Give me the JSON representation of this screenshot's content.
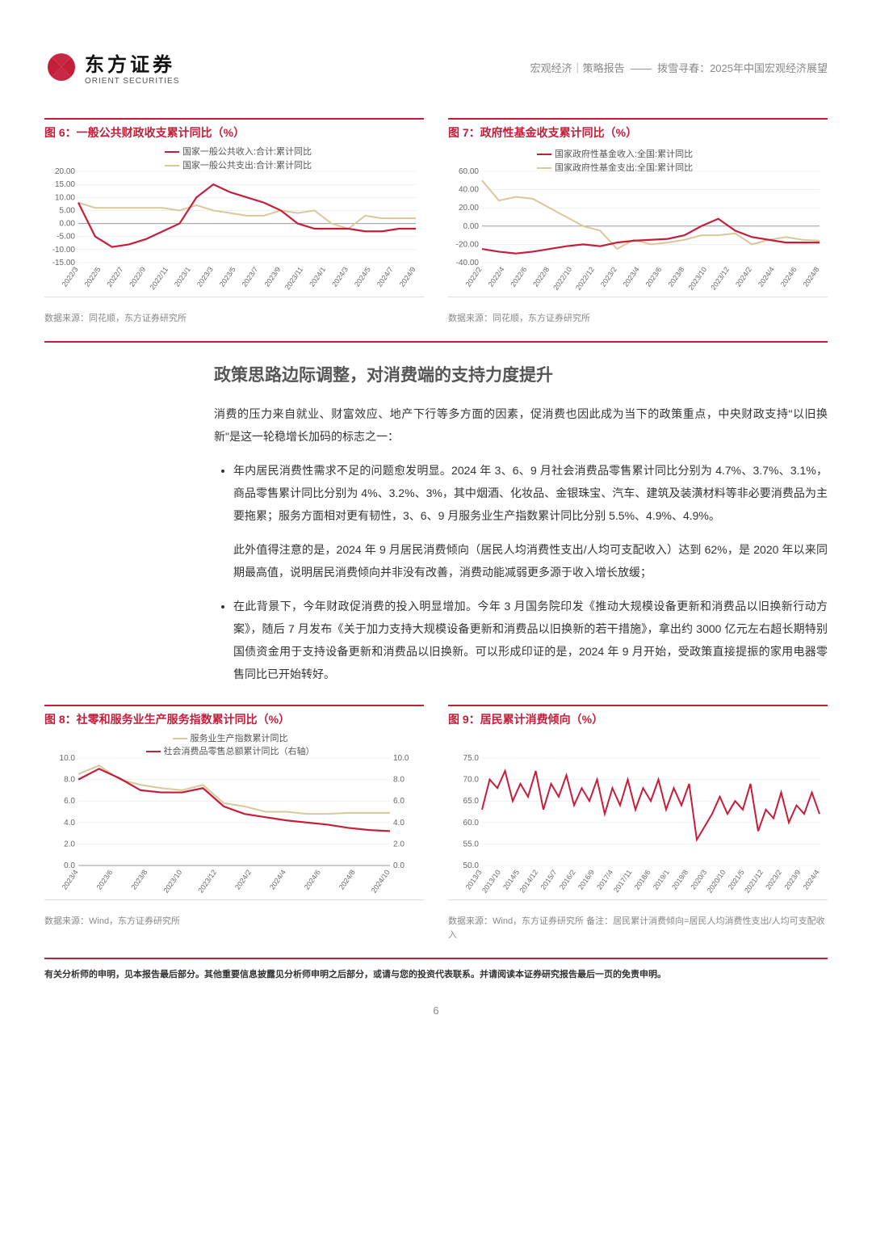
{
  "header": {
    "logo_cn": "东方证券",
    "logo_en": "ORIENT SECURITIES",
    "meta_left": "宏观经济｜策略报告",
    "meta_right": "拨雪寻春：2025年中国宏观经济展望"
  },
  "colors": {
    "brand_red": "#c41e3a",
    "series_red": "#c41e3a",
    "series_beige": "#d9c89a",
    "axis": "#666666",
    "grid": "#e5e5e5",
    "text_gray": "#888888"
  },
  "chart6": {
    "title": "图 6：一般公共财政收支累计同比（%）",
    "source": "数据来源：同花顺，东方证券研究所",
    "legend": [
      "国家一般公共收入:合计:累计同比",
      "国家一般公共支出:合计:累计同比"
    ],
    "ylim": [
      -15,
      20
    ],
    "ytick_step": 5,
    "xlabels": [
      "2022/3",
      "2022/5",
      "2022/7",
      "2022/9",
      "2022/11",
      "2023/1",
      "2023/3",
      "2023/5",
      "2023/7",
      "2023/9",
      "2023/11",
      "2024/1",
      "2024/3",
      "2024/5",
      "2024/7",
      "2024/9"
    ],
    "series_red": [
      8,
      -5,
      -9,
      -8,
      -6,
      -3,
      0,
      10,
      15,
      12,
      10,
      8,
      5,
      0,
      -2,
      -2,
      -2,
      -3,
      -3,
      -2,
      -2
    ],
    "series_beige": [
      8,
      6,
      6,
      6,
      6,
      6,
      5,
      7,
      5,
      4,
      3,
      3,
      5,
      4,
      5,
      0,
      -2,
      3,
      2,
      2,
      2
    ]
  },
  "chart7": {
    "title": "图 7：政府性基金收支累计同比（%）",
    "source": "数据来源：同花顺，东方证券研究所",
    "legend": [
      "国家政府性基金收入:全国:累计同比",
      "国家政府性基金支出:全国:累计同比"
    ],
    "ylim": [
      -40,
      60
    ],
    "ytick_step": 20,
    "xlabels": [
      "2022/2",
      "2022/4",
      "2022/6",
      "2022/8",
      "2022/10",
      "2022/12",
      "2023/2",
      "2023/4",
      "2023/6",
      "2023/8",
      "2023/10",
      "2023/12",
      "2024/2",
      "2024/4",
      "2024/6",
      "2024/8"
    ],
    "series_red": [
      -25,
      -28,
      -30,
      -28,
      -25,
      -22,
      -20,
      -22,
      -18,
      -16,
      -15,
      -14,
      -10,
      0,
      8,
      -5,
      -12,
      -15,
      -18,
      -18,
      -18
    ],
    "series_beige": [
      50,
      28,
      32,
      30,
      20,
      10,
      0,
      -5,
      -25,
      -15,
      -20,
      -18,
      -15,
      -10,
      -10,
      -8,
      -20,
      -15,
      -12,
      -15,
      -16
    ]
  },
  "chart8": {
    "title": "图 8：社零和服务业生产服务指数累计同比（%）",
    "source": "数据来源：Wind，东方证券研究所",
    "legend": [
      "服务业生产指数累计同比",
      "社会消费品零售总额累计同比（右轴）"
    ],
    "ylim_left": [
      0,
      10
    ],
    "ytick_step_left": 2,
    "ylim_right": [
      0,
      10
    ],
    "ytick_step_right": 2,
    "xlabels": [
      "2023/4",
      "2023/6",
      "2023/8",
      "2023/10",
      "2023/12",
      "2024/2",
      "2024/4",
      "2024/6",
      "2024/8",
      "2024/10"
    ],
    "series_beige": [
      8.5,
      9.3,
      8.0,
      7.5,
      7.2,
      7.0,
      7.5,
      5.8,
      5.5,
      5.0,
      5.0,
      4.8,
      4.8,
      4.9,
      4.9,
      4.9
    ],
    "series_red": [
      8.0,
      9.0,
      8.1,
      7.0,
      6.8,
      6.8,
      7.2,
      5.5,
      4.8,
      4.5,
      4.2,
      4.0,
      3.8,
      3.5,
      3.3,
      3.2
    ]
  },
  "chart9": {
    "title": "图 9：居民累计消费倾向（%）",
    "source": "数据来源：Wind，东方证券研究所  备注：居民累计消费倾向=居民人均消费性支出/人均可支配收入",
    "ylim": [
      50,
      75
    ],
    "ytick_step": 5,
    "xlabels": [
      "2013/3",
      "2013/10",
      "2014/5",
      "2014/12",
      "2015/7",
      "2016/2",
      "2016/9",
      "2017/4",
      "2017/11",
      "2018/6",
      "2019/1",
      "2019/8",
      "2020/3",
      "2020/10",
      "2021/5",
      "2021/12",
      "2023/2",
      "2023/9",
      "2024/4"
    ],
    "series_red": [
      63,
      70,
      68,
      72,
      65,
      69,
      66,
      72,
      63,
      69,
      66,
      71,
      64,
      68,
      65,
      70,
      62,
      68,
      64,
      70,
      63,
      68,
      65,
      70,
      63,
      68,
      64,
      69,
      56,
      59,
      62,
      66,
      62,
      65,
      63,
      69,
      58,
      63,
      61,
      67,
      60,
      64,
      62,
      67,
      62
    ]
  },
  "section": {
    "title": "政策思路边际调整，对消费端的支持力度提升",
    "para1": "消费的压力来自就业、财富效应、地产下行等多方面的因素，促消费也因此成为当下的政策重点，中央财政支持\"以旧换新\"是这一轮稳增长加码的标志之一：",
    "b1": "年内居民消费性需求不足的问题愈发明显。2024 年 3、6、9 月社会消费品零售累计同比分别为 4.7%、3.7%、3.1%，商品零售累计同比分别为 4%、3.2%、3%，其中烟酒、化妆品、金银珠宝、汽车、建筑及装潢材料等非必要消费品为主要拖累；服务方面相对更有韧性，3、6、9 月服务业生产指数累计同比分别 5.5%、4.9%、4.9%。",
    "b1_p2": "此外值得注意的是，2024 年 9 月居民消费倾向（居民人均消费性支出/人均可支配收入）达到 62%，是 2020 年以来同期最高值，说明居民消费倾向并非没有改善，消费动能减弱更多源于收入增长放缓；",
    "b2": "在此背景下，今年财政促消费的投入明显增加。今年 3 月国务院印发《推动大规模设备更新和消费品以旧换新行动方案》，随后 7 月发布《关于加力支持大规模设备更新和消费品以旧换新的若干措施》，拿出约 3000 亿元左右超长期特别国债资金用于支持设备更新和消费品以旧换新。可以形成印证的是，2024 年 9 月开始，受政策直接提振的家用电器零售同比已开始转好。"
  },
  "footer": {
    "disclaimer": "有关分析师的申明，见本报告最后部分。其他重要信息披露见分析师申明之后部分，或请与您的投资代表联系。并请阅读本证券研究报告最后一页的免责申明。",
    "page": "6"
  }
}
